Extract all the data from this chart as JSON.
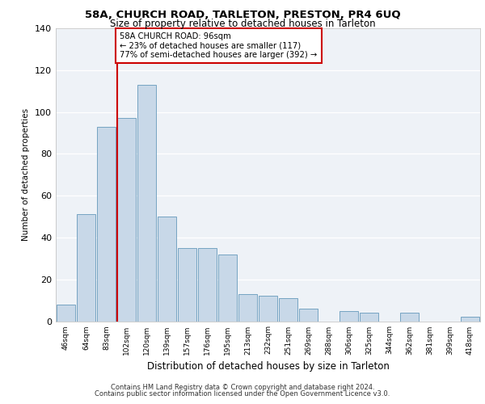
{
  "title1": "58A, CHURCH ROAD, TARLETON, PRESTON, PR4 6UQ",
  "title2": "Size of property relative to detached houses in Tarleton",
  "xlabel": "Distribution of detached houses by size in Tarleton",
  "ylabel": "Number of detached properties",
  "categories": [
    "46sqm",
    "64sqm",
    "83sqm",
    "102sqm",
    "120sqm",
    "139sqm",
    "157sqm",
    "176sqm",
    "195sqm",
    "213sqm",
    "232sqm",
    "251sqm",
    "269sqm",
    "288sqm",
    "306sqm",
    "325sqm",
    "344sqm",
    "362sqm",
    "381sqm",
    "399sqm",
    "418sqm"
  ],
  "values": [
    8,
    51,
    93,
    97,
    113,
    50,
    35,
    35,
    32,
    13,
    12,
    11,
    6,
    0,
    5,
    4,
    0,
    4,
    0,
    0,
    2
  ],
  "bar_color": "#c8d8e8",
  "bar_edge_color": "#6699bb",
  "vline_index": 3,
  "vline_color": "#cc0000",
  "annotation_title": "58A CHURCH ROAD: 96sqm",
  "annotation_line1": "← 23% of detached houses are smaller (117)",
  "annotation_line2": "77% of semi-detached houses are larger (392) →",
  "annotation_box_edge_color": "#cc0000",
  "ylim": [
    0,
    140
  ],
  "yticks": [
    0,
    20,
    40,
    60,
    80,
    100,
    120,
    140
  ],
  "background_color": "#eef2f7",
  "footer1": "Contains HM Land Registry data © Crown copyright and database right 2024.",
  "footer2": "Contains public sector information licensed under the Open Government Licence v3.0."
}
